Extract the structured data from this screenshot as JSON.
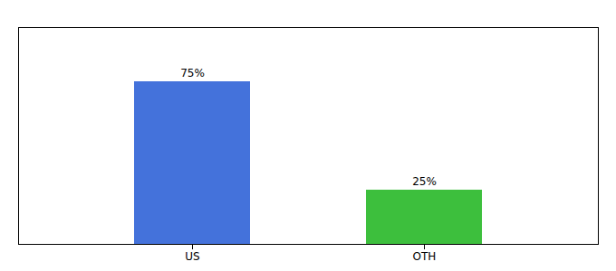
{
  "chart_data": {
    "type": "bar",
    "categories": [
      "US",
      "OTH"
    ],
    "values": [
      75,
      25
    ],
    "value_labels": [
      "75%",
      "25%"
    ],
    "colors": [
      "#4472db",
      "#3dbf3d"
    ],
    "ylim": [
      0,
      100
    ],
    "data_labels": true,
    "tick_labels": "x"
  }
}
